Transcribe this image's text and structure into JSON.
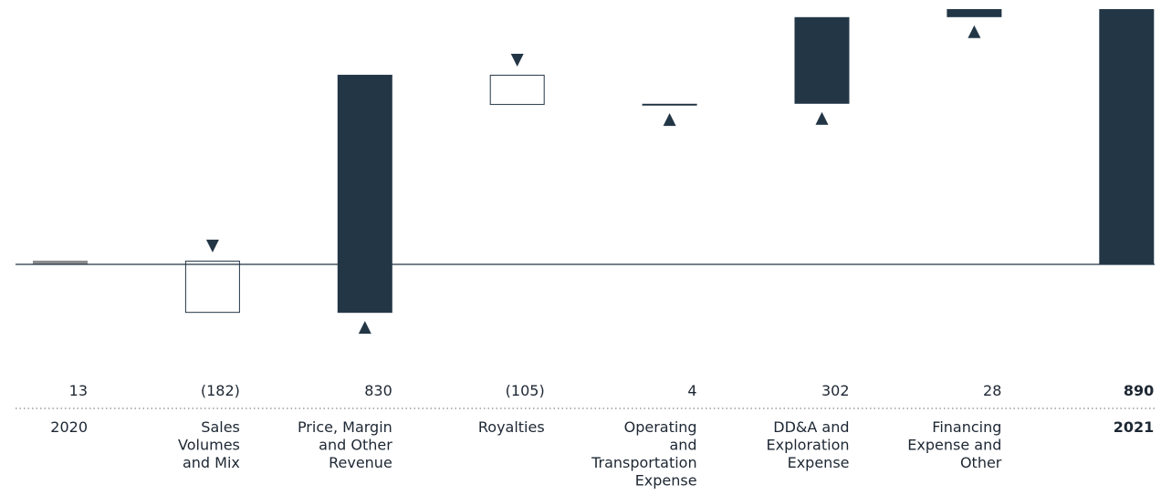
{
  "chart_data": {
    "type": "waterfall",
    "title": "",
    "xlabel": "",
    "ylabel": "",
    "colors": {
      "increase": "#233646",
      "decrease_fill": "#ffffff",
      "decrease_stroke": "#233646",
      "start": "#8c8c8c",
      "total": "#233646",
      "axis": "#233646",
      "text": "#1d2733",
      "divider": "#888888"
    },
    "items": [
      {
        "label_lines": [
          "2020"
        ],
        "value": 13,
        "display": "13",
        "kind": "start",
        "bold": false
      },
      {
        "label_lines": [
          "Sales",
          "Volumes",
          "and Mix"
        ],
        "value": -182,
        "display": "(182)",
        "kind": "decrease",
        "bold": false
      },
      {
        "label_lines": [
          "Price, Margin",
          "and Other",
          "Revenue"
        ],
        "value": 830,
        "display": "830",
        "kind": "increase",
        "bold": false
      },
      {
        "label_lines": [
          "Royalties"
        ],
        "value": -105,
        "display": "(105)",
        "kind": "decrease",
        "bold": false
      },
      {
        "label_lines": [
          "Operating",
          "and",
          "Transportation",
          "Expense"
        ],
        "value": 4,
        "display": "4",
        "kind": "increase",
        "bold": false
      },
      {
        "label_lines": [
          "DD&A and",
          "Exploration",
          "Expense"
        ],
        "value": 302,
        "display": "302",
        "kind": "increase",
        "bold": false
      },
      {
        "label_lines": [
          "Financing",
          "Expense and",
          "Other"
        ],
        "value": 28,
        "display": "28",
        "kind": "increase",
        "bold": false
      },
      {
        "label_lines": [
          "2021"
        ],
        "value": 890,
        "display": "890",
        "kind": "total",
        "bold": true
      }
    ]
  }
}
